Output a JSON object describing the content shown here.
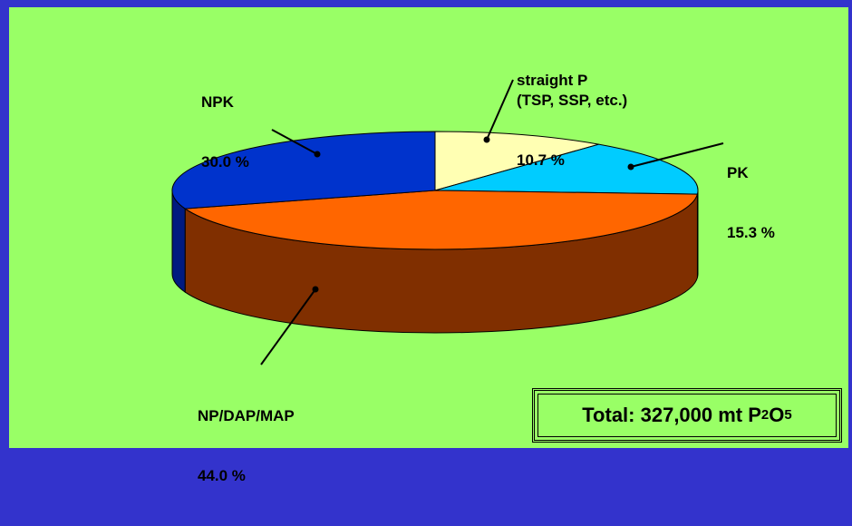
{
  "chart_data": {
    "type": "pie",
    "title": "",
    "style": "3d",
    "slices": [
      {
        "label": "straight P\n(TSP, SSP, etc.)",
        "value": 10.7,
        "display": "10.7 %",
        "color": "#ffffb3",
        "side_color": "#ffff99"
      },
      {
        "label": "PK",
        "value": 15.3,
        "display": "15.3 %",
        "color": "#00ccff",
        "side_color": "#0099cc"
      },
      {
        "label": "NP/DAP/MAP",
        "value": 44.0,
        "display": "44.0 %",
        "color": "#ff6600",
        "side_color": "#802f00"
      },
      {
        "label": "NPK",
        "value": 30.0,
        "display": "30.0 %",
        "color": "#0033cc",
        "side_color": "#001a80"
      }
    ],
    "annotation": {
      "text": "Total: 327,000 mt P",
      "subscript_1": "2",
      "mid": "O",
      "subscript_2": "5"
    }
  },
  "colors": {
    "background": "#3333cc",
    "plot_area": "#99ff66"
  }
}
